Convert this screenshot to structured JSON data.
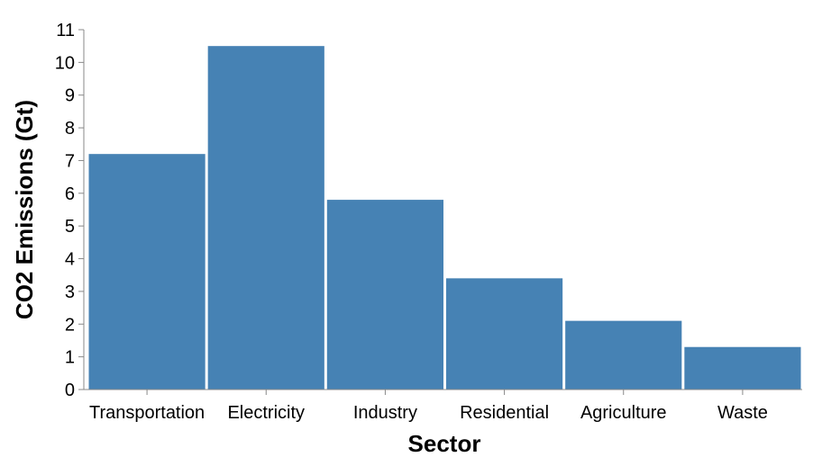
{
  "chart_data": {
    "type": "bar",
    "title": "",
    "xlabel": "Sector",
    "ylabel": "CO2 Emissions (Gt)",
    "categories": [
      "Transportation",
      "Electricity",
      "Industry",
      "Residential",
      "Agriculture",
      "Waste"
    ],
    "values": [
      7.2,
      10.5,
      5.8,
      3.4,
      2.1,
      1.3
    ],
    "ylim": [
      0,
      11
    ],
    "yticks": [
      0,
      1,
      2,
      3,
      4,
      5,
      6,
      7,
      8,
      9,
      10,
      11
    ],
    "grid": false,
    "bar_color": "#4682b4"
  }
}
